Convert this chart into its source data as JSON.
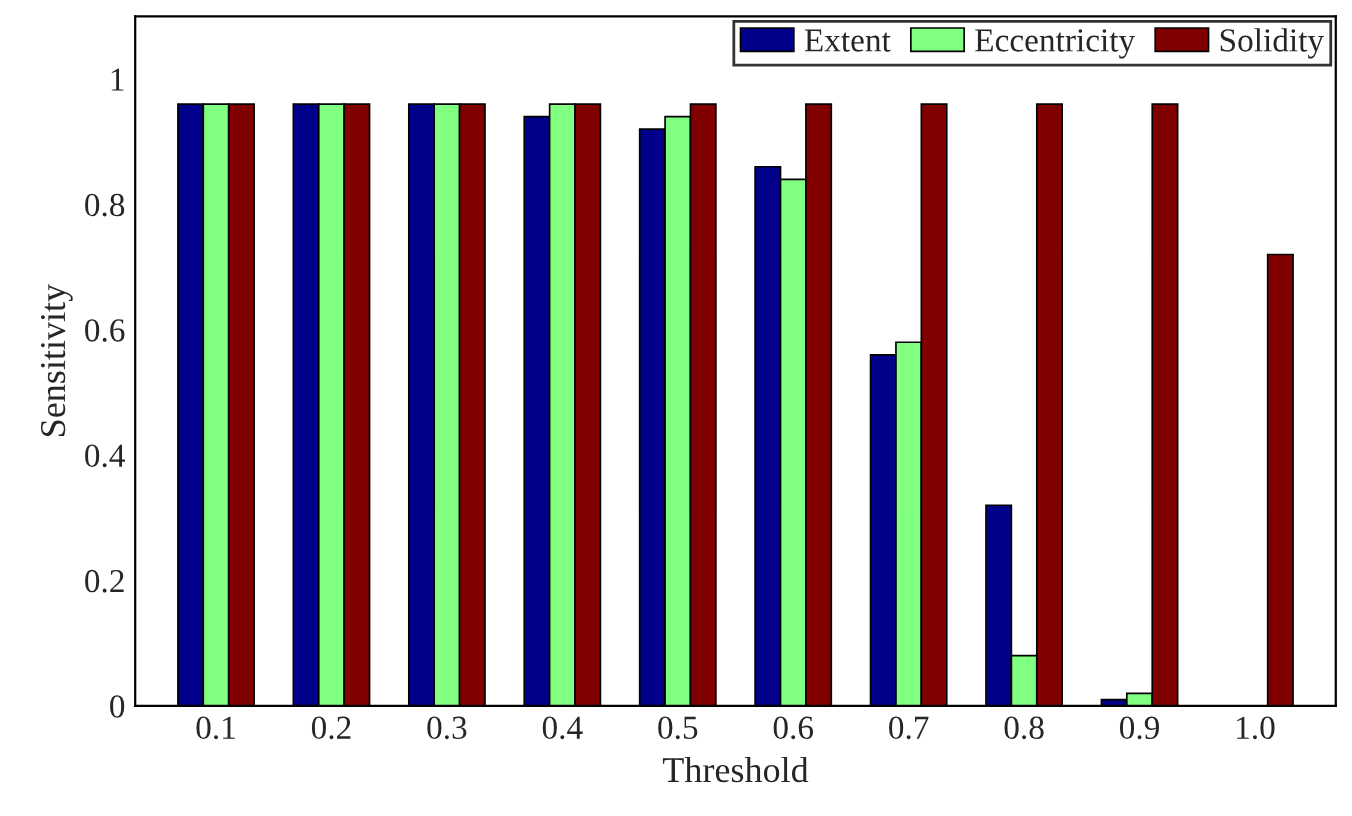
{
  "chart_data": {
    "type": "bar",
    "xlabel": "Threshold",
    "ylabel": "Sensitivity",
    "categories": [
      "0.1",
      "0.2",
      "0.3",
      "0.4",
      "0.5",
      "0.6",
      "0.7",
      "0.8",
      "0.9",
      "1.0"
    ],
    "series": [
      {
        "name": "Extent",
        "color": "#00008b",
        "values": [
          0.96,
          0.96,
          0.96,
          0.94,
          0.92,
          0.86,
          0.56,
          0.32,
          0.01,
          null
        ]
      },
      {
        "name": "Eccentricity",
        "color": "#80ff80",
        "values": [
          0.96,
          0.96,
          0.96,
          0.96,
          0.94,
          0.84,
          0.58,
          0.08,
          0.02,
          null
        ]
      },
      {
        "name": "Solidity",
        "color": "#800000",
        "values": [
          0.96,
          0.96,
          0.96,
          0.96,
          0.96,
          0.96,
          0.96,
          0.96,
          0.96,
          0.72
        ]
      }
    ],
    "ylim": [
      0,
      1.1
    ],
    "yticks": [
      0,
      0.2,
      0.4,
      0.6,
      0.8,
      1
    ],
    "grid": false,
    "legend": "top right"
  }
}
